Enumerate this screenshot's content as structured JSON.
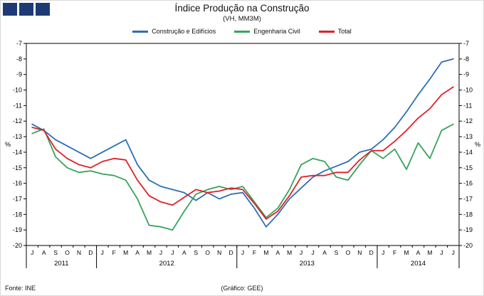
{
  "logo": {
    "color": "#1e3a75",
    "square_count": 3
  },
  "header": {
    "title": "Índice Produção na Construção",
    "subtitle": "(VH, MM3M)"
  },
  "footer": {
    "source": "Fonte: INE",
    "credit": "(Gráfico: GEE)"
  },
  "chart_data": {
    "type": "line",
    "title": "Índice Produção na Construção",
    "subtitle": "(VH, MM3M)",
    "ylabel_left": "%",
    "ylabel_right": "%",
    "ylim": [
      -20,
      -7
    ],
    "ytick_step": 1,
    "grid": false,
    "legend_position": "top",
    "months": [
      "J",
      "A",
      "S",
      "O",
      "N",
      "D",
      "J",
      "F",
      "M",
      "A",
      "M",
      "J",
      "J",
      "A",
      "S",
      "O",
      "N",
      "D",
      "J",
      "F",
      "M",
      "A",
      "M",
      "J",
      "J",
      "A",
      "S",
      "O",
      "N",
      "D",
      "J",
      "F",
      "M",
      "A",
      "M",
      "J",
      "J"
    ],
    "year_groups": [
      {
        "label": "2011",
        "start": 0,
        "count": 6
      },
      {
        "label": "2012",
        "start": 6,
        "count": 12
      },
      {
        "label": "2013",
        "start": 18,
        "count": 12
      },
      {
        "label": "2014",
        "start": 30,
        "count": 7
      }
    ],
    "series": [
      {
        "name": "Construção e Edifícios",
        "color": "#2b6fb4",
        "values": [
          -12.2,
          -12.6,
          -13.2,
          -13.6,
          -14.0,
          -14.4,
          -14.0,
          -13.6,
          -13.2,
          -14.8,
          -15.8,
          -16.2,
          -16.4,
          -16.6,
          -17.1,
          -16.6,
          -17.0,
          -16.7,
          -16.6,
          -17.6,
          -18.8,
          -18.0,
          -17.0,
          -16.3,
          -15.6,
          -15.2,
          -14.9,
          -14.6,
          -14.0,
          -13.8,
          -13.2,
          -12.4,
          -11.4,
          -10.3,
          -9.3,
          -8.2,
          -8.0
        ]
      },
      {
        "name": "Engenharia Civil",
        "color": "#35a45c",
        "values": [
          -12.8,
          -12.5,
          -14.3,
          -15.0,
          -15.3,
          -15.2,
          -15.4,
          -15.5,
          -15.8,
          -17.0,
          -18.7,
          -18.8,
          -19.0,
          -17.8,
          -16.7,
          -16.4,
          -16.2,
          -16.4,
          -16.2,
          -17.2,
          -18.2,
          -17.6,
          -16.4,
          -14.8,
          -14.4,
          -14.6,
          -15.6,
          -15.8,
          -14.8,
          -13.9,
          -14.4,
          -13.8,
          -15.1,
          -13.4,
          -14.4,
          -12.6,
          -12.2
        ]
      },
      {
        "name": "Total",
        "color": "#e02127",
        "values": [
          -12.4,
          -12.6,
          -13.8,
          -14.4,
          -14.8,
          -15.0,
          -14.6,
          -14.4,
          -14.5,
          -15.8,
          -16.8,
          -17.2,
          -17.4,
          -16.9,
          -16.4,
          -16.6,
          -16.5,
          -16.3,
          -16.4,
          -17.3,
          -18.3,
          -17.8,
          -16.8,
          -15.6,
          -15.5,
          -15.5,
          -15.3,
          -15.3,
          -14.5,
          -13.9,
          -13.9,
          -13.3,
          -12.6,
          -11.8,
          -11.2,
          -10.3,
          -9.8
        ]
      }
    ]
  }
}
